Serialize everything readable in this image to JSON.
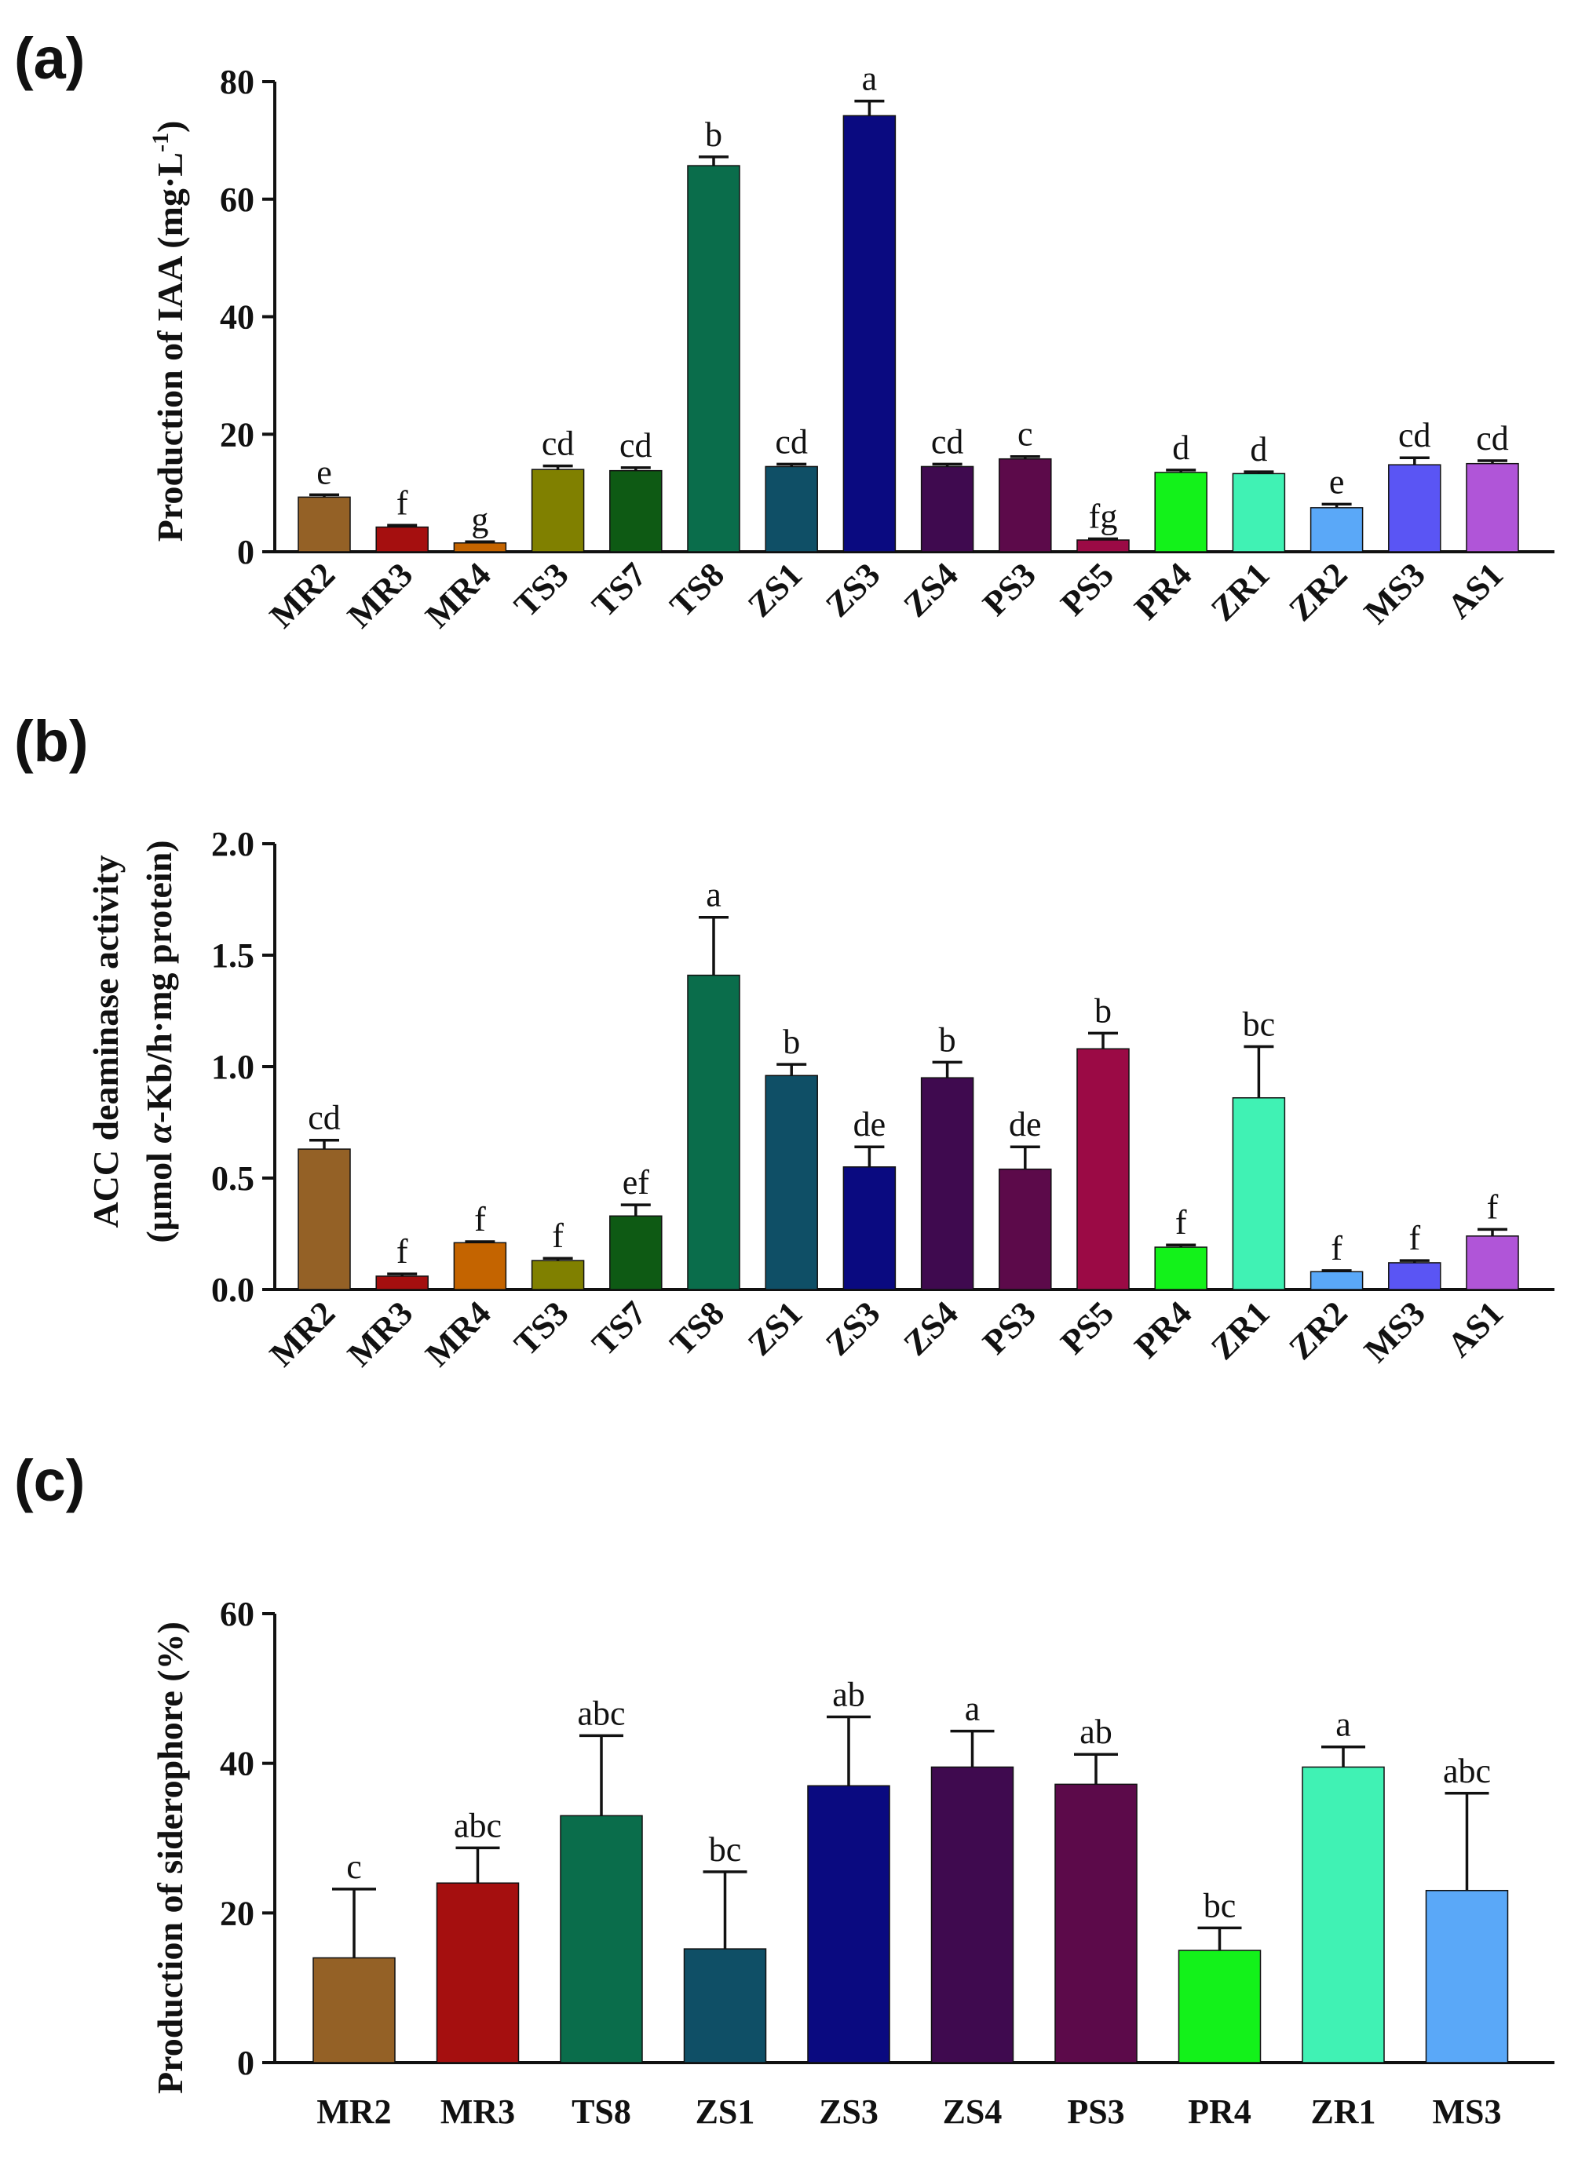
{
  "chart_data": [
    {
      "type": "bar",
      "panel": "(a)",
      "title": "",
      "xlabel": "",
      "ylabel": "Production of IAA (mg·L",
      "ylabel_sup": "-1",
      "ylabel_suffix": ")",
      "ylim": [
        0,
        80
      ],
      "yticks": [
        0,
        20,
        40,
        60,
        80
      ],
      "tick_labels": [
        "0",
        "20",
        "40",
        "60",
        "80"
      ],
      "categories": [
        "MR2",
        "MR3",
        "MR4",
        "TS3",
        "TS7",
        "TS8",
        "ZS1",
        "ZS3",
        "ZS4",
        "PS3",
        "PS5",
        "PR4",
        "ZR1",
        "ZR2",
        "MS3",
        "AS1"
      ],
      "values": [
        9.3,
        4.2,
        1.5,
        14.0,
        13.8,
        65.7,
        14.5,
        74.2,
        14.5,
        15.8,
        2.0,
        13.5,
        13.3,
        7.5,
        14.8,
        15.0
      ],
      "errors": [
        0.4,
        0.3,
        0.2,
        0.6,
        0.5,
        1.5,
        0.4,
        2.5,
        0.4,
        0.4,
        0.2,
        0.4,
        0.3,
        0.6,
        1.2,
        0.5
      ],
      "significance": [
        "e",
        "f",
        "g",
        "cd",
        "cd",
        "b",
        "cd",
        "a",
        "cd",
        "c",
        "fg",
        "d",
        "d",
        "e",
        "cd",
        "cd"
      ],
      "colors": [
        "#946126",
        "#A50F0F",
        "#C46400",
        "#808000",
        "#0E5A14",
        "#0A6D4B",
        "#0F4F66",
        "#0A0A80",
        "#3F0A4F",
        "#5C0A4A",
        "#9B0A45",
        "#13F21A",
        "#40F2B4",
        "#5AA8F8",
        "#5A55F4",
        "#B055D8"
      ]
    },
    {
      "type": "bar",
      "panel": "(b)",
      "title": "",
      "xlabel": "",
      "ylabel_line1": "ACC deaminase activity",
      "ylabel_line2_pre": "(μmol ",
      "ylabel_line2_alpha": "α",
      "ylabel_line2_post": "-Kb/h·mg protein)",
      "ylim": [
        0,
        2.0
      ],
      "yticks": [
        0,
        0.5,
        1.0,
        1.5,
        2.0
      ],
      "tick_labels": [
        "0.0",
        "0.5",
        "1.0",
        "1.5",
        "2.0"
      ],
      "categories": [
        "MR2",
        "MR3",
        "MR4",
        "TS3",
        "TS7",
        "TS8",
        "ZS1",
        "ZS3",
        "ZS4",
        "PS3",
        "PS5",
        "PR4",
        "ZR1",
        "ZR2",
        "MS3",
        "AS1"
      ],
      "values": [
        0.63,
        0.06,
        0.21,
        0.13,
        0.33,
        1.41,
        0.96,
        0.55,
        0.95,
        0.54,
        1.08,
        0.19,
        0.86,
        0.08,
        0.12,
        0.24
      ],
      "errors": [
        0.04,
        0.01,
        0.005,
        0.01,
        0.05,
        0.26,
        0.05,
        0.09,
        0.07,
        0.1,
        0.07,
        0.01,
        0.23,
        0.005,
        0.01,
        0.03
      ],
      "significance": [
        "cd",
        "f",
        "f",
        "f",
        "ef",
        "a",
        "b",
        "de",
        "b",
        "de",
        "b",
        "f",
        "bc",
        "f",
        "f",
        "f"
      ],
      "colors": [
        "#946126",
        "#A50F0F",
        "#C46400",
        "#808000",
        "#0E5A14",
        "#0A6D4B",
        "#0F4F66",
        "#0A0A80",
        "#3F0A4F",
        "#5C0A4A",
        "#9B0A45",
        "#13F21A",
        "#40F2B4",
        "#5AA8F8",
        "#5A55F4",
        "#B055D8"
      ]
    },
    {
      "type": "bar",
      "panel": "(c)",
      "title": "",
      "xlabel": "",
      "ylabel": "Production of siderophore (%)",
      "ylim": [
        0,
        60
      ],
      "yticks": [
        0,
        20,
        40,
        60
      ],
      "tick_labels": [
        "0",
        "20",
        "40",
        "60"
      ],
      "categories": [
        "MR2",
        "MR3",
        "TS8",
        "ZS1",
        "ZS3",
        "ZS4",
        "PS3",
        "PR4",
        "ZR1",
        "MS3"
      ],
      "values": [
        14.0,
        24.0,
        33.0,
        15.2,
        37.0,
        39.5,
        37.2,
        15.0,
        39.5,
        23.0
      ],
      "errors": [
        9.2,
        4.7,
        10.7,
        10.3,
        9.2,
        4.8,
        4.0,
        3.0,
        2.7,
        13.0
      ],
      "significance": [
        "c",
        "abc",
        "abc",
        "bc",
        "ab",
        "a",
        "ab",
        "bc",
        "a",
        "abc"
      ],
      "colors": [
        "#946126",
        "#A50F0F",
        "#0A6D4B",
        "#0F4F66",
        "#0A0A80",
        "#3F0A4F",
        "#5C0A4A",
        "#13F21A",
        "#40F2B4",
        "#5AA8F8"
      ]
    }
  ]
}
